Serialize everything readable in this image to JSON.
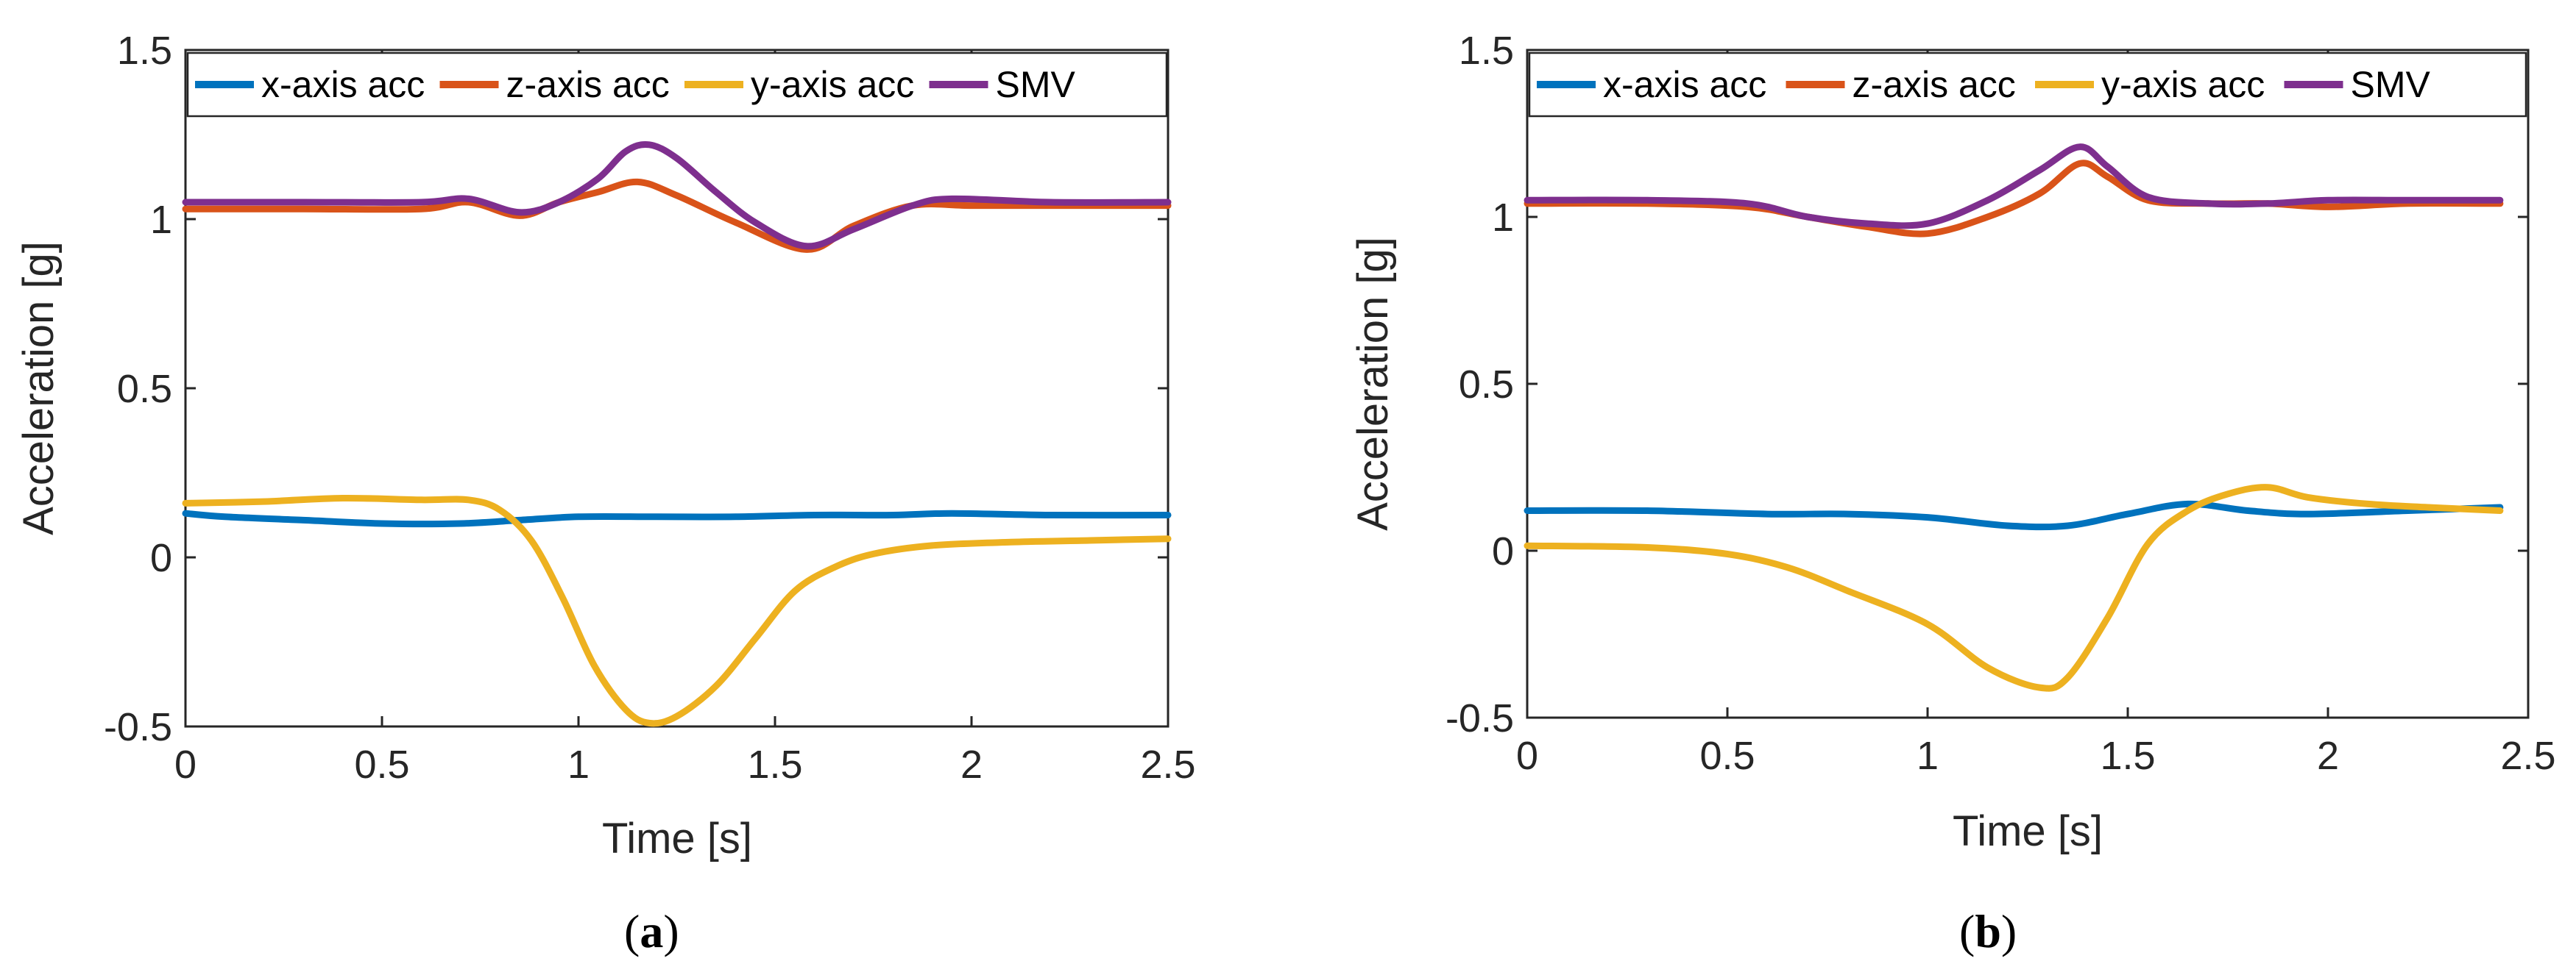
{
  "chart_data": [
    {
      "type": "line",
      "panel_label": "a",
      "xlabel": "Time [s]",
      "ylabel": "Acceleration [g]",
      "xlim": [
        0,
        2.5
      ],
      "ylim": [
        -0.5,
        1.5
      ],
      "xticks": [
        0,
        0.5,
        1,
        1.5,
        2,
        2.5
      ],
      "yticks": [
        -0.5,
        0,
        0.5,
        1,
        1.5
      ],
      "legend": "top-inside",
      "series": [
        {
          "name": "x-axis acc",
          "color": "#0072BD",
          "x": [
            0,
            0.1,
            0.3,
            0.5,
            0.7,
            0.85,
            1.0,
            1.2,
            1.4,
            1.6,
            1.8,
            1.95,
            2.2,
            2.5
          ],
          "y": [
            0.13,
            0.12,
            0.11,
            0.1,
            0.1,
            0.11,
            0.12,
            0.12,
            0.12,
            0.125,
            0.125,
            0.13,
            0.125,
            0.125
          ]
        },
        {
          "name": "z-axis acc",
          "color": "#D95319",
          "x": [
            0,
            0.3,
            0.6,
            0.72,
            0.85,
            0.95,
            1.05,
            1.15,
            1.25,
            1.4,
            1.58,
            1.7,
            1.85,
            2.0,
            2.2,
            2.5
          ],
          "y": [
            1.03,
            1.03,
            1.03,
            1.05,
            1.01,
            1.05,
            1.08,
            1.11,
            1.07,
            0.99,
            0.91,
            0.98,
            1.04,
            1.04,
            1.04,
            1.04
          ]
        },
        {
          "name": "y-axis acc",
          "color": "#EDB120",
          "x": [
            0,
            0.2,
            0.4,
            0.6,
            0.72,
            0.8,
            0.88,
            0.96,
            1.04,
            1.12,
            1.18,
            1.25,
            1.35,
            1.45,
            1.55,
            1.65,
            1.75,
            1.9,
            2.1,
            2.3,
            2.5
          ],
          "y": [
            0.16,
            0.165,
            0.175,
            0.17,
            0.17,
            0.14,
            0.05,
            -0.12,
            -0.32,
            -0.45,
            -0.49,
            -0.47,
            -0.38,
            -0.24,
            -0.1,
            -0.03,
            0.01,
            0.035,
            0.045,
            0.05,
            0.055
          ]
        },
        {
          "name": "SMV",
          "color": "#7E2F8E",
          "x": [
            0,
            0.3,
            0.6,
            0.72,
            0.85,
            0.95,
            1.05,
            1.12,
            1.18,
            1.25,
            1.35,
            1.45,
            1.58,
            1.7,
            1.85,
            1.95,
            2.2,
            2.5
          ],
          "y": [
            1.05,
            1.05,
            1.05,
            1.06,
            1.02,
            1.05,
            1.12,
            1.2,
            1.22,
            1.18,
            1.08,
            0.99,
            0.92,
            0.97,
            1.04,
            1.06,
            1.05,
            1.05
          ]
        }
      ]
    },
    {
      "type": "line",
      "panel_label": "b",
      "xlabel": "Time [s]",
      "ylabel": "Acceleration [g]",
      "xlim": [
        0,
        2.5
      ],
      "ylim": [
        -0.5,
        1.5
      ],
      "xticks": [
        0,
        0.5,
        1,
        1.5,
        2,
        2.5
      ],
      "yticks": [
        -0.5,
        0,
        0.5,
        1,
        1.5
      ],
      "legend": "top-inside",
      "series": [
        {
          "name": "x-axis acc",
          "color": "#0072BD",
          "x": [
            0,
            0.3,
            0.6,
            0.8,
            1.0,
            1.2,
            1.35,
            1.5,
            1.65,
            1.8,
            1.95,
            2.2,
            2.43
          ],
          "y": [
            0.12,
            0.12,
            0.11,
            0.11,
            0.1,
            0.075,
            0.075,
            0.11,
            0.14,
            0.12,
            0.11,
            0.12,
            0.13
          ]
        },
        {
          "name": "z-axis acc",
          "color": "#D95319",
          "x": [
            0,
            0.3,
            0.55,
            0.7,
            0.85,
            1.0,
            1.15,
            1.28,
            1.38,
            1.45,
            1.55,
            1.7,
            1.85,
            2.0,
            2.2,
            2.43
          ],
          "y": [
            1.04,
            1.04,
            1.03,
            1.0,
            0.97,
            0.95,
            1.0,
            1.07,
            1.16,
            1.12,
            1.05,
            1.04,
            1.04,
            1.03,
            1.04,
            1.04
          ]
        },
        {
          "name": "y-axis acc",
          "color": "#EDB120",
          "x": [
            0,
            0.3,
            0.5,
            0.65,
            0.8,
            1.0,
            1.15,
            1.28,
            1.35,
            1.45,
            1.55,
            1.65,
            1.75,
            1.85,
            1.95,
            2.1,
            2.25,
            2.43
          ],
          "y": [
            0.015,
            0.01,
            -0.01,
            -0.05,
            -0.12,
            -0.22,
            -0.35,
            -0.41,
            -0.38,
            -0.2,
            0.02,
            0.12,
            0.17,
            0.19,
            0.16,
            0.14,
            0.13,
            0.12
          ]
        },
        {
          "name": "SMV",
          "color": "#7E2F8E",
          "x": [
            0,
            0.3,
            0.55,
            0.7,
            0.85,
            1.0,
            1.15,
            1.28,
            1.38,
            1.45,
            1.55,
            1.7,
            1.85,
            2.0,
            2.2,
            2.43
          ],
          "y": [
            1.05,
            1.05,
            1.04,
            1.0,
            0.98,
            0.98,
            1.05,
            1.14,
            1.21,
            1.15,
            1.06,
            1.04,
            1.04,
            1.05,
            1.05,
            1.05
          ]
        }
      ]
    }
  ]
}
